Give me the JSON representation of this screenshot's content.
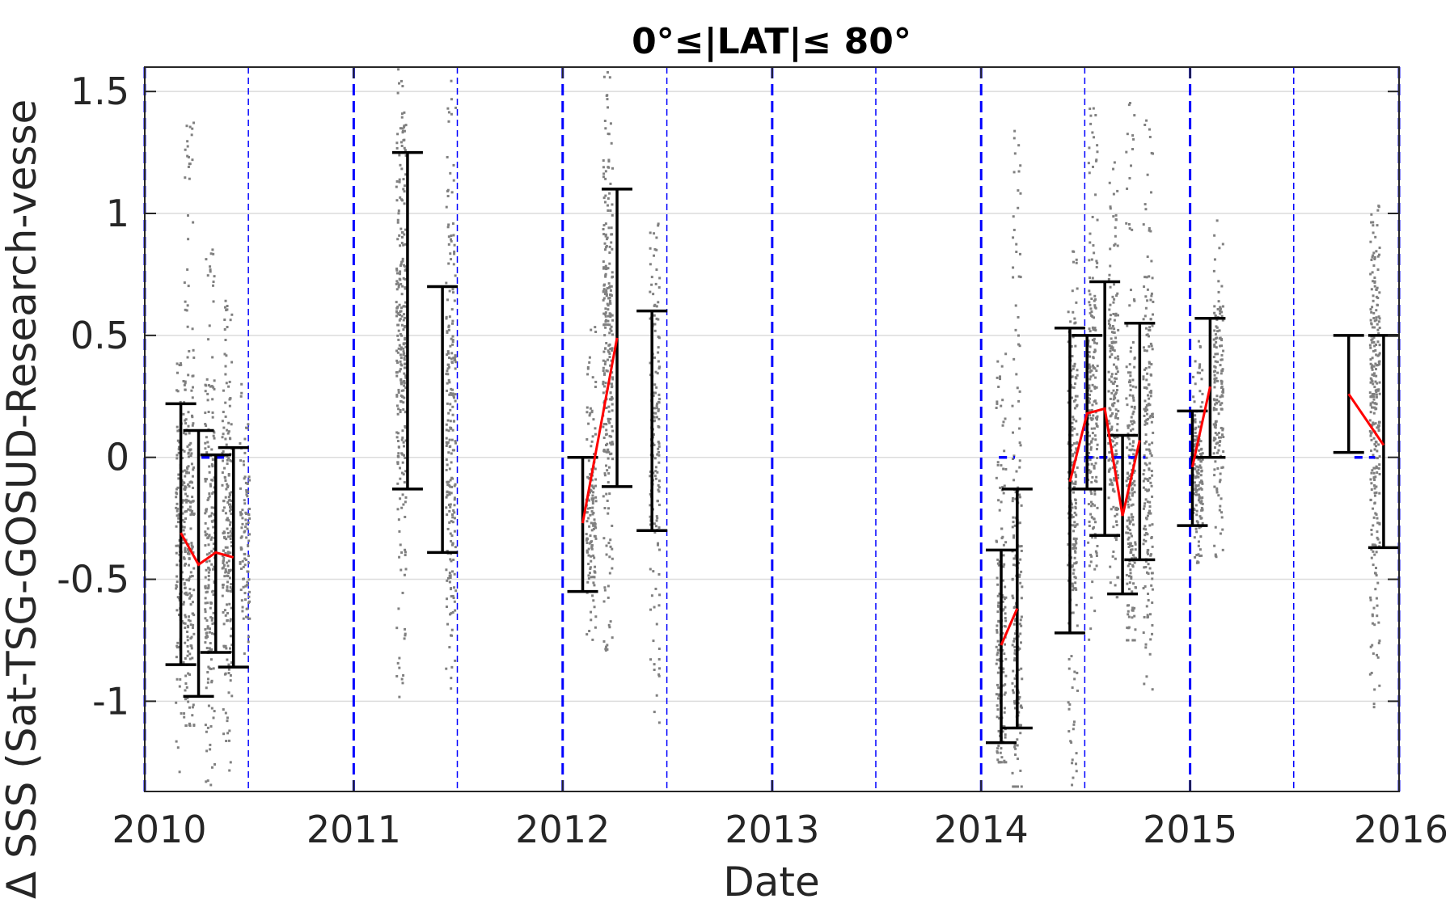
{
  "chart_data": {
    "type": "scatter",
    "title": "0°≤|LAT|≤ 80°",
    "xlabel": "Date",
    "ylabel": "Δ SSS (Sat-TSG-GOSUD-Research-vesse",
    "xlim": [
      "2010-01-01",
      "2016-01-01"
    ],
    "ylim": [
      -1.37,
      1.6
    ],
    "x_tick_labels": [
      "2010",
      "2011",
      "2012",
      "2013",
      "2014",
      "2015",
      "2016"
    ],
    "y_tick_values": [
      -1,
      -0.5,
      0,
      0.5,
      1,
      1.5
    ],
    "y_tick_labels": [
      "-1",
      "-0.5",
      "0",
      "0.5",
      "1",
      "1.5"
    ],
    "grid": "horizontal",
    "year_boundaries": [
      "2010-01-01",
      "2011-01-01",
      "2012-01-01",
      "2013-01-01",
      "2014-01-01",
      "2015-01-01",
      "2016-01-01"
    ],
    "mid_year_lines": [
      "2010-07-01",
      "2011-07-01",
      "2012-07-01",
      "2013-07-01",
      "2014-07-01",
      "2015-07-01"
    ],
    "scatter_clusters": [
      {
        "date": "2010-03-05",
        "min": -1.3,
        "max": 0.45,
        "center": -0.3,
        "count": 150
      },
      {
        "date": "2010-03-20",
        "min": -1.1,
        "max": 1.45,
        "center": -0.35,
        "count": 200
      },
      {
        "date": "2010-04-25",
        "min": -1.37,
        "max": 0.9,
        "center": -0.4,
        "count": 200
      },
      {
        "date": "2010-05-25",
        "min": -1.3,
        "max": 0.65,
        "center": -0.35,
        "count": 200
      },
      {
        "date": "2010-06-25",
        "min": -0.9,
        "max": 0.3,
        "center": -0.4,
        "count": 100
      },
      {
        "date": "2011-03-25",
        "min": -1.05,
        "max": 1.6,
        "center": 0.55,
        "count": 260
      },
      {
        "date": "2011-06-20",
        "min": -0.95,
        "max": 1.55,
        "center": 0.15,
        "count": 220
      },
      {
        "date": "2012-02-20",
        "min": -0.75,
        "max": 0.55,
        "center": -0.25,
        "count": 140
      },
      {
        "date": "2012-03-20",
        "min": -0.8,
        "max": 1.6,
        "center": 0.5,
        "count": 260
      },
      {
        "date": "2012-06-10",
        "min": -1.15,
        "max": 1.05,
        "center": 0.15,
        "count": 160
      },
      {
        "date": "2014-02-05",
        "min": -1.25,
        "max": 0.5,
        "center": -0.75,
        "count": 160
      },
      {
        "date": "2014-03-05",
        "min": -1.35,
        "max": 1.4,
        "center": -0.65,
        "count": 180
      },
      {
        "date": "2014-06-10",
        "min": -1.35,
        "max": 0.85,
        "center": -0.1,
        "count": 200
      },
      {
        "date": "2014-07-15",
        "min": -0.75,
        "max": 1.45,
        "center": 0.2,
        "count": 200
      },
      {
        "date": "2014-08-20",
        "min": -0.6,
        "max": 1.25,
        "center": 0.2,
        "count": 200
      },
      {
        "date": "2014-09-20",
        "min": -0.75,
        "max": 1.5,
        "center": -0.2,
        "count": 200
      },
      {
        "date": "2014-10-20",
        "min": -1.0,
        "max": 1.5,
        "center": 0.05,
        "count": 200
      },
      {
        "date": "2015-01-15",
        "min": -0.45,
        "max": 0.5,
        "center": -0.05,
        "count": 160
      },
      {
        "date": "2015-02-20",
        "min": -0.45,
        "max": 1.0,
        "center": 0.25,
        "count": 160
      },
      {
        "date": "2015-11-20",
        "min": -1.05,
        "max": 1.05,
        "center": 0.25,
        "count": 260
      }
    ],
    "error_bars": [
      {
        "date": "2010-03-05",
        "lower": -0.85,
        "upper": 0.22
      },
      {
        "date": "2010-04-05",
        "lower": -0.98,
        "upper": 0.11
      },
      {
        "date": "2010-05-05",
        "lower": -0.8,
        "upper": 0.01
      },
      {
        "date": "2010-06-05",
        "lower": -0.86,
        "upper": 0.04
      },
      {
        "date": "2011-04-05",
        "lower": -0.13,
        "upper": 1.25
      },
      {
        "date": "2011-06-05",
        "lower": -0.39,
        "upper": 0.7
      },
      {
        "date": "2012-02-05",
        "lower": -0.55,
        "upper": 0.0
      },
      {
        "date": "2012-04-05",
        "lower": -0.12,
        "upper": 1.1
      },
      {
        "date": "2012-06-05",
        "lower": -0.3,
        "upper": 0.6
      },
      {
        "date": "2014-02-05",
        "lower": -1.17,
        "upper": -0.38
      },
      {
        "date": "2014-03-05",
        "lower": -1.11,
        "upper": -0.13
      },
      {
        "date": "2014-06-05",
        "lower": -0.72,
        "upper": 0.53
      },
      {
        "date": "2014-07-05",
        "lower": -0.13,
        "upper": 0.5
      },
      {
        "date": "2014-08-05",
        "lower": -0.32,
        "upper": 0.72
      },
      {
        "date": "2014-09-05",
        "lower": -0.56,
        "upper": 0.09
      },
      {
        "date": "2014-10-05",
        "lower": -0.42,
        "upper": 0.55
      },
      {
        "date": "2015-01-05",
        "lower": -0.28,
        "upper": 0.19
      },
      {
        "date": "2015-02-05",
        "lower": 0.0,
        "upper": 0.57
      },
      {
        "date": "2015-10-05",
        "lower": 0.02,
        "upper": 0.5
      },
      {
        "date": "2015-12-05",
        "lower": -0.37,
        "upper": 0.5
      }
    ],
    "median_series": [
      {
        "x": [
          "2010-03-05",
          "2010-04-05",
          "2010-05-05",
          "2010-06-05"
        ],
        "y": [
          -0.31,
          -0.44,
          -0.39,
          -0.41
        ]
      },
      {
        "x": [
          "2012-02-05",
          "2012-04-05"
        ],
        "y": [
          -0.27,
          0.49
        ]
      },
      {
        "x": [
          "2014-02-05",
          "2014-03-05"
        ],
        "y": [
          -0.77,
          -0.62
        ]
      },
      {
        "x": [
          "2014-06-05",
          "2014-07-05",
          "2014-08-05",
          "2014-09-05",
          "2014-10-05"
        ],
        "y": [
          -0.1,
          0.18,
          0.2,
          -0.24,
          0.07
        ]
      },
      {
        "x": [
          "2015-01-05",
          "2015-02-05"
        ],
        "y": [
          -0.04,
          0.29
        ]
      },
      {
        "x": [
          "2015-10-05",
          "2015-12-05"
        ],
        "y": [
          0.26,
          0.05
        ]
      }
    ],
    "zero_markers": [
      {
        "from": "2010-04-10",
        "to": "2010-05-20",
        "y": 0
      },
      {
        "from": "2014-02-01",
        "to": "2014-03-01",
        "y": 0
      },
      {
        "from": "2014-07-01",
        "to": "2014-10-15",
        "y": 0
      },
      {
        "from": "2015-01-01",
        "to": "2015-02-15",
        "y": 0
      },
      {
        "from": "2015-10-15",
        "to": "2015-11-20",
        "y": 0
      }
    ],
    "colors": {
      "scatter": "#808080",
      "error_bar": "#000000",
      "median_line": "#ff0000",
      "year_line": "#0000ff",
      "grid": "#dcdcdc",
      "axis": "#262626"
    }
  }
}
